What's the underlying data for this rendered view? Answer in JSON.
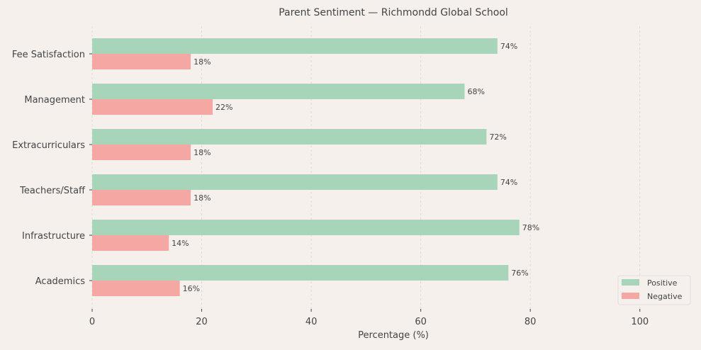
{
  "chart_data": {
    "type": "bar",
    "orientation": "horizontal",
    "title": "Parent Sentiment — Richmondd Global School",
    "xlabel": "Percentage (%)",
    "ylabel": "",
    "xlim": [
      0,
      110
    ],
    "xticks": [
      0,
      20,
      40,
      60,
      80,
      100
    ],
    "grid": "x, dashed",
    "legend": "bottom-right",
    "categories": [
      "Academics",
      "Infrastructure",
      "Teachers/Staff",
      "Extracurriculars",
      "Management",
      "Fee Satisfaction"
    ],
    "series": [
      {
        "name": "Positive",
        "color": "#a8d5ba",
        "values": [
          76,
          78,
          74,
          72,
          68,
          74
        ]
      },
      {
        "name": "Negative",
        "color": "#f5a8a3",
        "values": [
          16,
          14,
          18,
          18,
          22,
          18
        ]
      }
    ],
    "label_suffix": "%"
  }
}
